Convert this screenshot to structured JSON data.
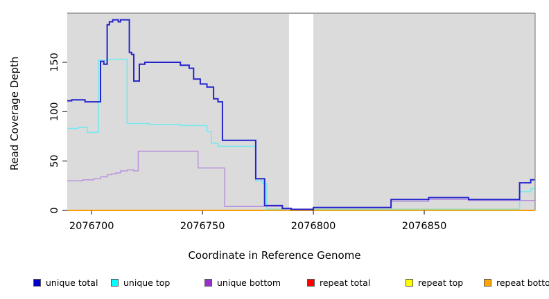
{
  "figure": {
    "xlabel": "Coordinate in Reference Genome",
    "ylabel": "Read Coverage Depth"
  },
  "chart_data": {
    "type": "line",
    "subtype": "step-after-coverage-plot",
    "title": "",
    "xlabel": "Coordinate in Reference Genome",
    "ylabel": "Read Coverage Depth",
    "xlim": [
      2076689,
      2076900
    ],
    "ylim": [
      0,
      200
    ],
    "x_ticks": [
      2076700,
      2076750,
      2076800,
      2076850
    ],
    "y_ticks": [
      0,
      50,
      100,
      150
    ],
    "grid": false,
    "panel_background": "#dbdbdb",
    "frame_color": "#848484",
    "gap_region": {
      "x_start": 2076789,
      "x_end": 2076800,
      "fill": "#ffffff"
    },
    "baseline_blend_segment": {
      "comment": "light green line at depth ~1 where unique top overlaps repeat lines",
      "x_start": 2076779,
      "x_end": 2076893,
      "value": 1,
      "color": "#9fd49f"
    },
    "legend_position": "bottom",
    "series": [
      {
        "name": "unique total",
        "color": "#2323cd",
        "swatch": "#0000cd",
        "width": 2,
        "points": [
          [
            2076689,
            111
          ],
          [
            2076691,
            112
          ],
          [
            2076697,
            110
          ],
          [
            2076704,
            151
          ],
          [
            2076705.5,
            148
          ],
          [
            2076707,
            188
          ],
          [
            2076708,
            191
          ],
          [
            2076709.5,
            193
          ],
          [
            2076712,
            191
          ],
          [
            2076713,
            193
          ],
          [
            2076717,
            160
          ],
          [
            2076718,
            158
          ],
          [
            2076719,
            131
          ],
          [
            2076721.5,
            148
          ],
          [
            2076724,
            150
          ],
          [
            2076740,
            147
          ],
          [
            2076744,
            144
          ],
          [
            2076746,
            133
          ],
          [
            2076749,
            128
          ],
          [
            2076752,
            125
          ],
          [
            2076755,
            113
          ],
          [
            2076757,
            110
          ],
          [
            2076759,
            71
          ],
          [
            2076774,
            32
          ],
          [
            2076778,
            5
          ],
          [
            2076786,
            2
          ],
          [
            2076790,
            1
          ],
          [
            2076800,
            3
          ],
          [
            2076835,
            11
          ],
          [
            2076852,
            13
          ],
          [
            2076870,
            11
          ],
          [
            2076893,
            28
          ],
          [
            2076898,
            31
          ]
        ]
      },
      {
        "name": "unique top",
        "color": "#76e9ef",
        "swatch": "#00ffff",
        "width": 1.6,
        "points": [
          [
            2076689,
            83
          ],
          [
            2076694,
            84
          ],
          [
            2076698,
            79
          ],
          [
            2076703,
            152
          ],
          [
            2076707,
            153
          ],
          [
            2076716,
            88
          ],
          [
            2076726,
            87
          ],
          [
            2076740,
            86
          ],
          [
            2076752,
            80
          ],
          [
            2076754,
            68
          ],
          [
            2076757,
            65
          ],
          [
            2076774,
            30
          ],
          [
            2076777,
            27
          ],
          [
            2076779,
            1
          ],
          [
            2076893,
            19
          ],
          [
            2076898,
            22
          ]
        ]
      },
      {
        "name": "unique bottom",
        "color": "#b78fdb",
        "swatch": "#9932cc",
        "width": 1.4,
        "points": [
          [
            2076689,
            30
          ],
          [
            2076696,
            31
          ],
          [
            2076701,
            32
          ],
          [
            2076704,
            34
          ],
          [
            2076707,
            36
          ],
          [
            2076709,
            37
          ],
          [
            2076711,
            38
          ],
          [
            2076713,
            40
          ],
          [
            2076716,
            41
          ],
          [
            2076719,
            40
          ],
          [
            2076721,
            60
          ],
          [
            2076748,
            43
          ],
          [
            2076760,
            4
          ],
          [
            2076786,
            1.5
          ],
          [
            2076800,
            2.5
          ],
          [
            2076835,
            9
          ],
          [
            2076852,
            11
          ],
          [
            2076870,
            10
          ]
        ]
      },
      {
        "name": "repeat total",
        "color": "#e00000",
        "swatch": "#ff0000",
        "width": 1,
        "points": [
          [
            2076689,
            0
          ]
        ]
      },
      {
        "name": "repeat top",
        "color": "#ffff00",
        "swatch": "#ffff00",
        "width": 1,
        "points": [
          [
            2076689,
            0
          ]
        ]
      },
      {
        "name": "repeat bottom",
        "color": "#ff9e00",
        "swatch": "#ffa500",
        "width": 2,
        "points": [
          [
            2076689,
            0
          ]
        ]
      }
    ],
    "legend": [
      {
        "label": "unique total",
        "color": "#0000cd"
      },
      {
        "label": "unique top",
        "color": "#00ffff"
      },
      {
        "label": "unique bottom",
        "color": "#9932cc"
      },
      {
        "label": "repeat total",
        "color": "#ff0000"
      },
      {
        "label": "repeat top",
        "color": "#ffff00"
      },
      {
        "label": "repeat bottom",
        "color": "#ffa500"
      }
    ]
  }
}
